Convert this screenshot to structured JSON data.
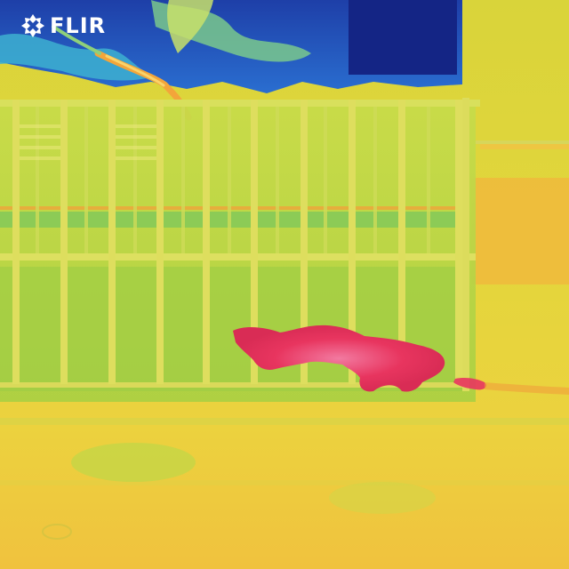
{
  "brand": {
    "logo_text": "FLIR",
    "logo_icon": "flir-logo-icon"
  },
  "image": {
    "kind": "thermal camera image",
    "palette_colors": {
      "cold": "#1c2f9a",
      "cool": "#3aa7cf",
      "mid": "#9bcf3c",
      "warm": "#e6d83a",
      "hot": "#f3a53a",
      "hottest": "#e8355f"
    }
  }
}
